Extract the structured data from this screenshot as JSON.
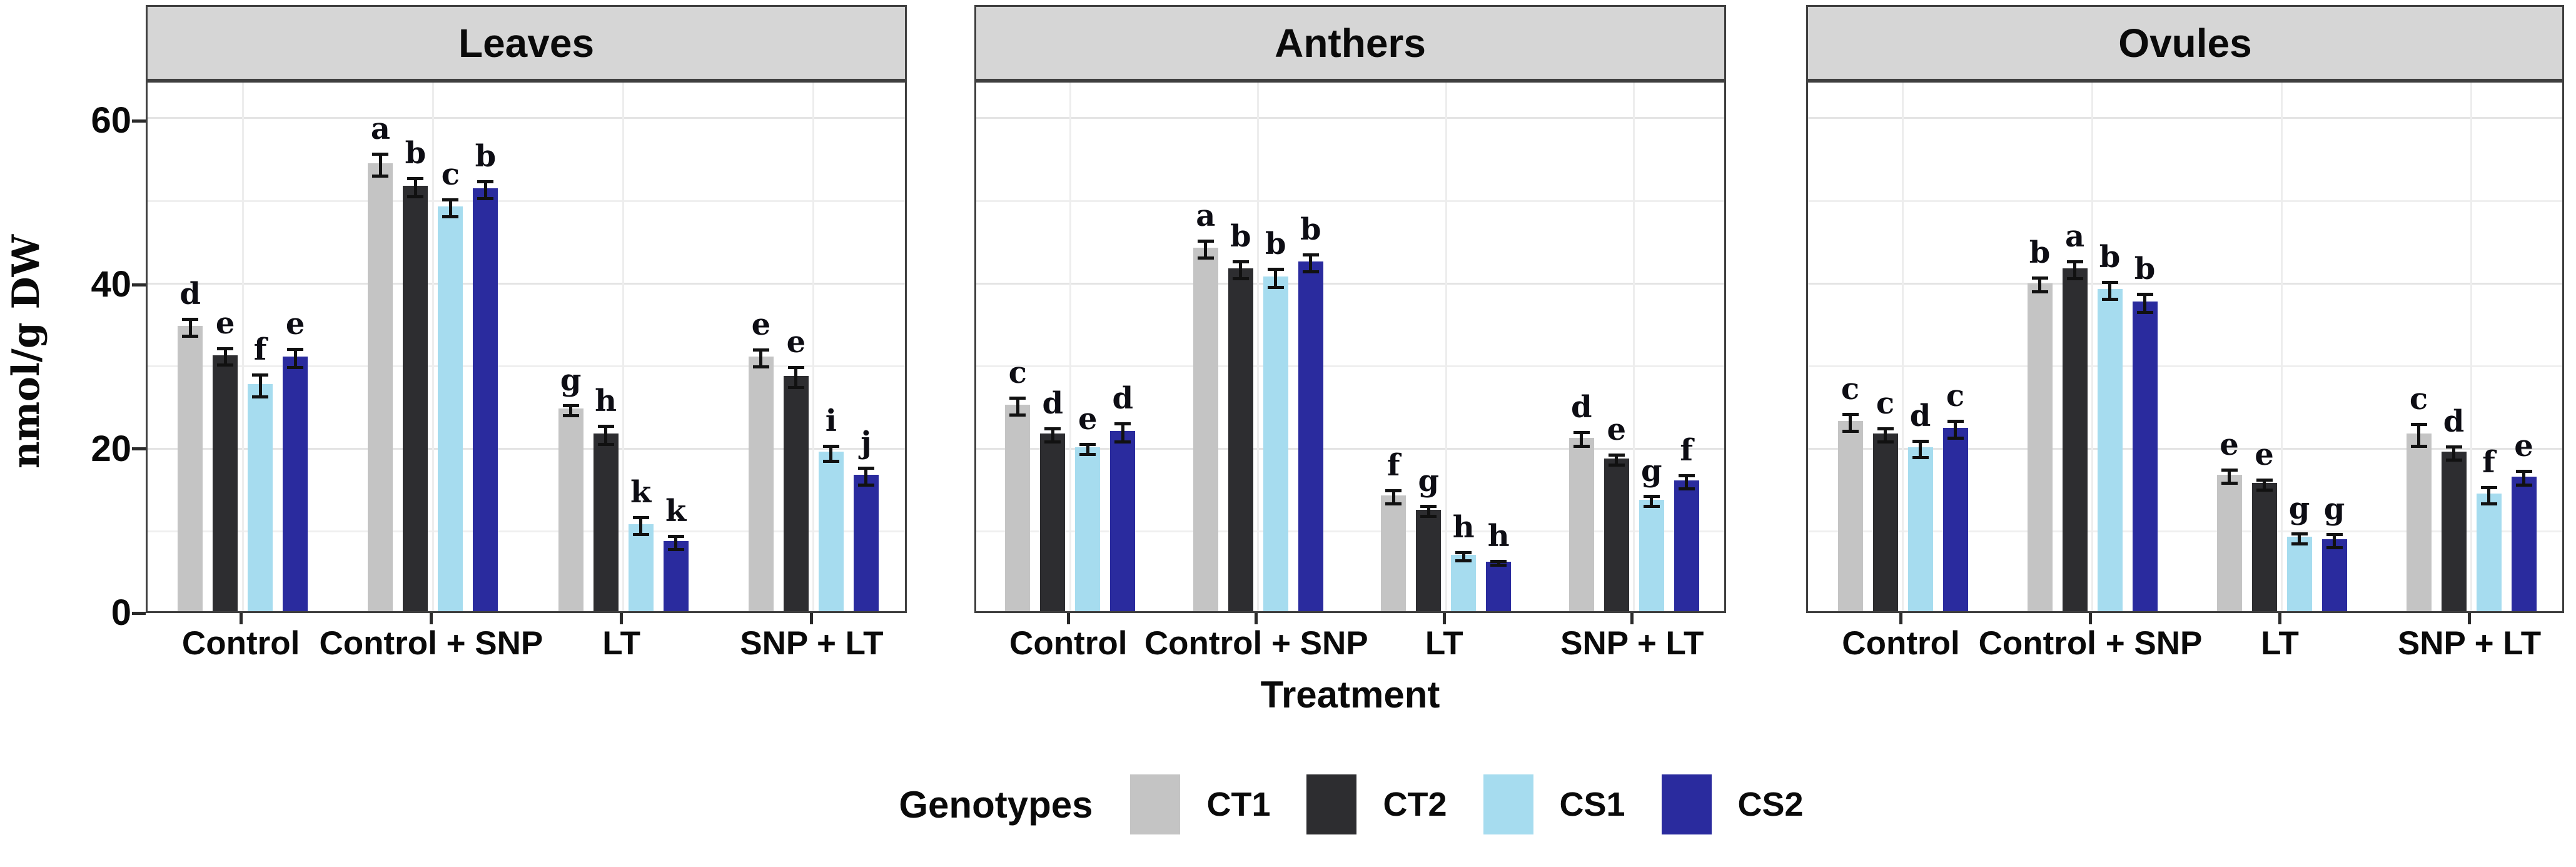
{
  "figure": {
    "y_axis": {
      "label": "nmol/g DW",
      "ticks": [
        0,
        20,
        40,
        60
      ],
      "tick_labels": [
        "0",
        "20",
        "40",
        "60"
      ],
      "range_max": 64.2
    },
    "x_axis": {
      "label": "Treatment",
      "categories": [
        "Control",
        "Control + SNP",
        "LT",
        "SNP + LT"
      ]
    },
    "legend": {
      "title": "Genotypes",
      "items": [
        {
          "label": "CT1",
          "color": "#c4c4c4"
        },
        {
          "label": "CT2",
          "color": "#2d2d30"
        },
        {
          "label": "CS1",
          "color": "#a6dcef"
        },
        {
          "label": "CS2",
          "color": "#2a2b9e"
        }
      ]
    },
    "colors": {
      "header_bg": "#d6d6d6",
      "panel_border": "#3f3f3f",
      "grid_major": "#e4e4e4",
      "grid_minor": "#efefef",
      "error_bar": "#111111"
    }
  },
  "chart_data": [
    {
      "type": "bar",
      "title": "Leaves",
      "categories": [
        "Control",
        "Control + SNP",
        "LT",
        "SNP + LT"
      ],
      "ylim": [
        0,
        64.2
      ],
      "series": [
        {
          "name": "CT1",
          "values": [
            34.5,
            54.2,
            24.5,
            30.8
          ],
          "errors": [
            1.2,
            1.5,
            0.8,
            1.2
          ],
          "letters": [
            "d",
            "a",
            "g",
            "e"
          ]
        },
        {
          "name": "CT2",
          "values": [
            31.0,
            51.5,
            21.5,
            28.5
          ],
          "errors": [
            1.2,
            1.3,
            1.3,
            1.4
          ],
          "letters": [
            "e",
            "b",
            "h",
            "e"
          ]
        },
        {
          "name": "CS1",
          "values": [
            27.5,
            49.0,
            10.5,
            19.3
          ],
          "errors": [
            1.5,
            1.2,
            1.2,
            1.1
          ],
          "letters": [
            "f",
            "c",
            "k",
            "i"
          ]
        },
        {
          "name": "CS2",
          "values": [
            30.8,
            51.2,
            8.5,
            16.5
          ],
          "errors": [
            1.3,
            1.2,
            1.0,
            1.2
          ],
          "letters": [
            "e",
            "b",
            "k",
            "j"
          ]
        }
      ]
    },
    {
      "type": "bar",
      "title": "Anthers",
      "categories": [
        "Control",
        "Control + SNP",
        "LT",
        "SNP + LT"
      ],
      "ylim": [
        0,
        64.2
      ],
      "series": [
        {
          "name": "CT1",
          "values": [
            25.0,
            44.0,
            14.0,
            21.0
          ],
          "errors": [
            1.2,
            1.2,
            1.0,
            1.0
          ],
          "letters": [
            "c",
            "a",
            "f",
            "d"
          ]
        },
        {
          "name": "CT2",
          "values": [
            21.5,
            41.5,
            12.3,
            18.5
          ],
          "errors": [
            1.0,
            1.2,
            0.8,
            0.8
          ],
          "letters": [
            "d",
            "b",
            "g",
            "e"
          ]
        },
        {
          "name": "CS1",
          "values": [
            19.8,
            40.5,
            6.8,
            13.5
          ],
          "errors": [
            0.8,
            1.3,
            0.7,
            0.8
          ],
          "letters": [
            "e",
            "b",
            "h",
            "g"
          ]
        },
        {
          "name": "CS2",
          "values": [
            21.8,
            42.3,
            6.0,
            15.8
          ],
          "errors": [
            1.3,
            1.2,
            0.4,
            1.0
          ],
          "letters": [
            "d",
            "b",
            "h",
            "f"
          ]
        }
      ]
    },
    {
      "type": "bar",
      "title": "Ovules",
      "categories": [
        "Control",
        "Control + SNP",
        "LT",
        "SNP + LT"
      ],
      "ylim": [
        0,
        64.2
      ],
      "series": [
        {
          "name": "CT1",
          "values": [
            23.0,
            39.7,
            16.5,
            21.5
          ],
          "errors": [
            1.2,
            1.0,
            1.0,
            1.5
          ],
          "letters": [
            "c",
            "b",
            "e",
            "c"
          ]
        },
        {
          "name": "CT2",
          "values": [
            21.5,
            41.5,
            15.5,
            19.3
          ],
          "errors": [
            1.0,
            1.2,
            0.8,
            1.0
          ],
          "letters": [
            "c",
            "a",
            "e",
            "d"
          ]
        },
        {
          "name": "CS1",
          "values": [
            19.8,
            39.0,
            9.0,
            14.2
          ],
          "errors": [
            1.2,
            1.2,
            0.8,
            1.2
          ],
          "letters": [
            "d",
            "b",
            "g",
            "f"
          ]
        },
        {
          "name": "CS2",
          "values": [
            22.2,
            37.5,
            8.7,
            16.3
          ],
          "errors": [
            1.2,
            1.3,
            1.0,
            1.0
          ],
          "letters": [
            "c",
            "b",
            "g",
            "e"
          ]
        }
      ]
    }
  ]
}
